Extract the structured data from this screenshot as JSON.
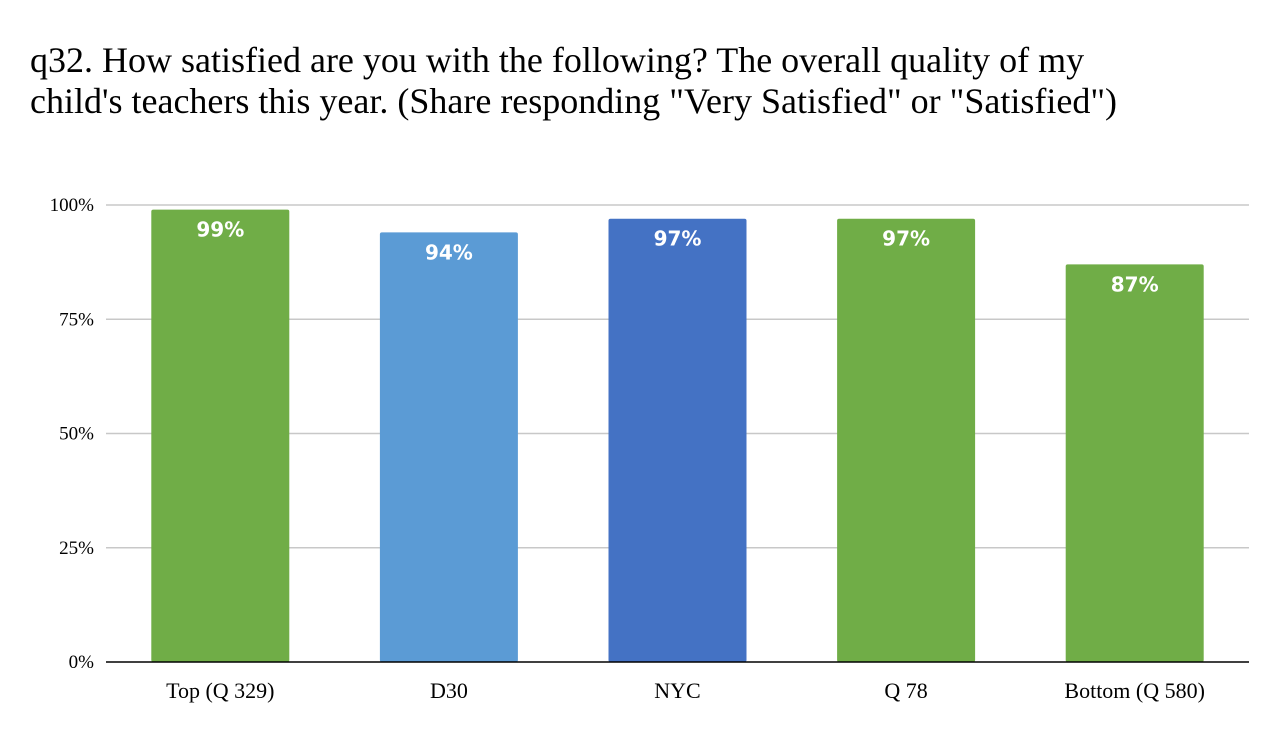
{
  "chart_data": {
    "type": "bar",
    "title": "q32. How satisfied are you with the following? The overall quality of my child's teachers this year. (Share responding \"Very Satisfied\" or \"Satisfied\")",
    "title_lines": [
      "q32. How satisfied are you with the following? The overall quality of my",
      "child's teachers this year. (Share responding \"Very Satisfied\" or \"Satisfied\")"
    ],
    "categories": [
      "Top (Q 329)",
      "D30",
      "NYC",
      "Q 78",
      "Bottom (Q 580)"
    ],
    "values": [
      99,
      94,
      97,
      97,
      87
    ],
    "data_labels": [
      "99%",
      "94%",
      "97%",
      "97%",
      "87%"
    ],
    "colors": [
      "#70ad47",
      "#5b9bd5",
      "#4472c4",
      "#70ad47",
      "#70ad47"
    ],
    "ylim": [
      0,
      100
    ],
    "yticks": [
      0,
      25,
      50,
      75,
      100
    ],
    "ytick_labels": [
      "0%",
      "25%",
      "50%",
      "75%",
      "100%"
    ],
    "grid": true,
    "gridline_color": "#c8c8c8",
    "legend": "none",
    "xlabel": "",
    "ylabel": ""
  }
}
